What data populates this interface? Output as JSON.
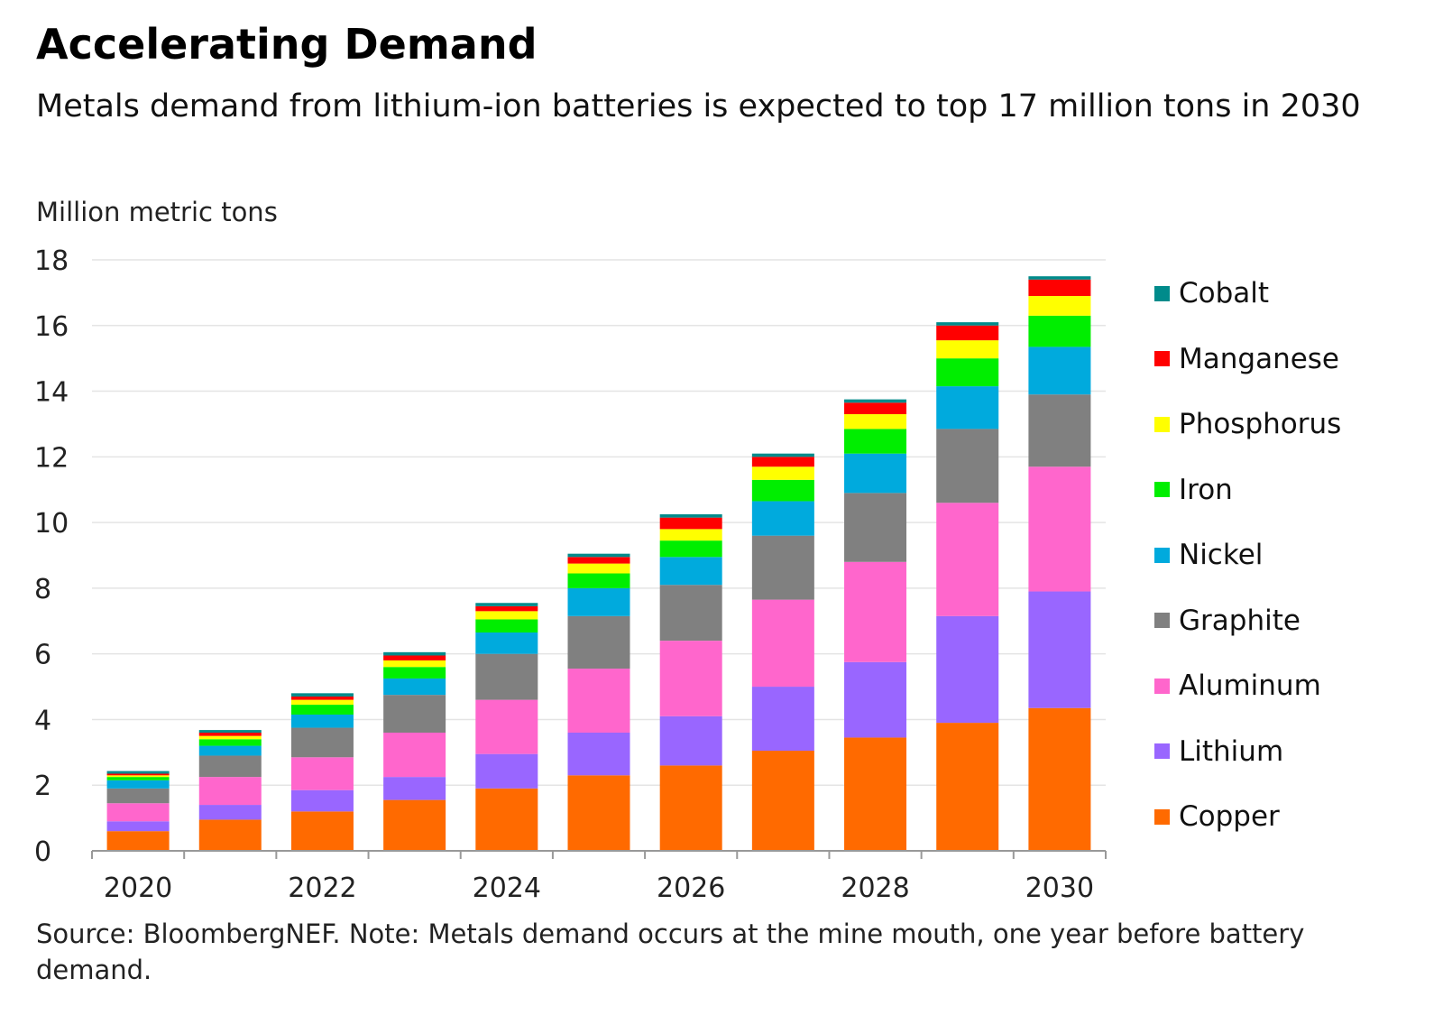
{
  "title": "Accelerating Demand",
  "subtitle": "Metals demand from lithium-ion batteries is expected to top 17 million tons in 2030",
  "source": "Source: BloombergNEF. Note: Metals demand occurs at the mine mouth, one year before battery demand.",
  "chart_data": {
    "type": "bar",
    "stacked": true,
    "title": "Accelerating Demand",
    "ylabel": "Million metric tons",
    "ylim": [
      0,
      18
    ],
    "yticks": [
      0,
      2,
      4,
      6,
      8,
      10,
      12,
      14,
      16,
      18
    ],
    "grid": true,
    "legend_position": "right",
    "categories": [
      "2020",
      "2021",
      "2022",
      "2023",
      "2024",
      "2025",
      "2026",
      "2027",
      "2028",
      "2029",
      "2030"
    ],
    "xtick_labels": [
      "2020",
      "",
      "2022",
      "",
      "2024",
      "",
      "2026",
      "",
      "2028",
      "",
      "2030"
    ],
    "series": [
      {
        "name": "Copper",
        "color": "#ff6a00",
        "values": [
          0.6,
          0.95,
          1.2,
          1.55,
          1.9,
          2.3,
          2.6,
          3.05,
          3.45,
          3.9,
          4.35
        ]
      },
      {
        "name": "Lithium",
        "color": "#9966ff",
        "values": [
          0.3,
          0.45,
          0.65,
          0.7,
          1.05,
          1.3,
          1.5,
          1.95,
          2.3,
          3.25,
          3.55
        ]
      },
      {
        "name": "Aluminum",
        "color": "#ff66cc",
        "values": [
          0.55,
          0.85,
          1.0,
          1.35,
          1.65,
          1.95,
          2.3,
          2.65,
          3.05,
          3.45,
          3.8
        ]
      },
      {
        "name": "Graphite",
        "color": "#808080",
        "values": [
          0.45,
          0.65,
          0.9,
          1.15,
          1.4,
          1.6,
          1.7,
          1.95,
          2.1,
          2.25,
          2.2
        ]
      },
      {
        "name": "Nickel",
        "color": "#00aadd",
        "values": [
          0.25,
          0.3,
          0.4,
          0.5,
          0.65,
          0.85,
          0.85,
          1.05,
          1.2,
          1.3,
          1.45
        ]
      },
      {
        "name": "Iron",
        "color": "#00ee00",
        "values": [
          0.1,
          0.2,
          0.3,
          0.35,
          0.4,
          0.45,
          0.5,
          0.65,
          0.75,
          0.85,
          0.95
        ]
      },
      {
        "name": "Phosphorus",
        "color": "#ffff00",
        "values": [
          0.05,
          0.1,
          0.15,
          0.2,
          0.25,
          0.3,
          0.35,
          0.4,
          0.45,
          0.55,
          0.6
        ]
      },
      {
        "name": "Manganese",
        "color": "#ff0000",
        "values": [
          0.05,
          0.1,
          0.1,
          0.15,
          0.15,
          0.2,
          0.35,
          0.3,
          0.35,
          0.45,
          0.5
        ]
      },
      {
        "name": "Cobalt",
        "color": "#008b8b",
        "values": [
          0.08,
          0.08,
          0.1,
          0.1,
          0.1,
          0.1,
          0.1,
          0.1,
          0.1,
          0.1,
          0.1
        ]
      }
    ]
  }
}
